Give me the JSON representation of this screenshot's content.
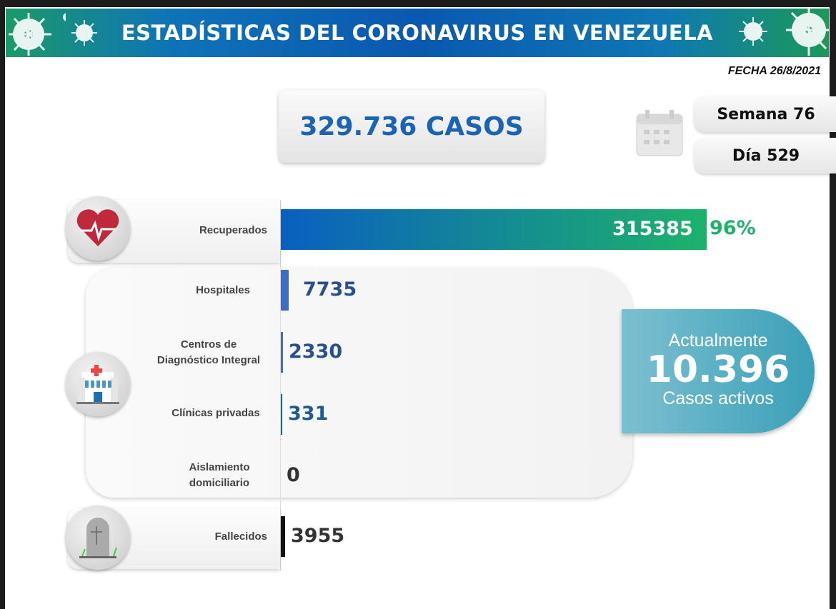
{
  "header": {
    "title": "ESTADÍSTICAS DEL CORONAVIRUS EN VENEZUELA",
    "date": "FECHA 26/8/2021"
  },
  "total": {
    "label": "329.736 CASOS"
  },
  "calendar": {
    "icon": "calendar-icon",
    "week": "Semana 76",
    "day": "Día 529"
  },
  "active": {
    "line1": "Actualmente",
    "value": "10.396",
    "line2": "Casos activos",
    "color": "#3aa0b8"
  },
  "chart_data": {
    "type": "bar",
    "categories": [
      "Recuperados",
      "Hospitales",
      "Centros de Diagnóstico Integral",
      "Clínicas privadas",
      "Aislamiento domiciliario",
      "Fallecidos"
    ],
    "values": [
      315385,
      7735,
      2330,
      331,
      0,
      3955
    ],
    "labels": [
      "315385",
      "7735",
      "2330",
      "331",
      "0",
      "3955"
    ],
    "recovered_percent": "96%",
    "colors": {
      "recovered": [
        "#0a5fc0",
        "#1db36a"
      ],
      "hospital": "#3a6fc7",
      "death": "#111111",
      "percent": "#1db36a"
    }
  }
}
